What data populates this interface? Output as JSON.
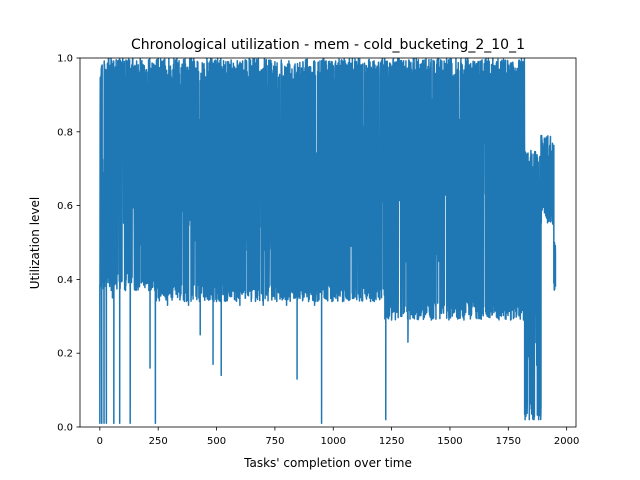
{
  "chart_data": {
    "type": "line",
    "title": "Chronological utilization - mem - cold_bucketing_2_10_1",
    "xlabel": "Tasks' completion over time",
    "ylabel": "Utilization level",
    "xlim": [
      -85,
      2040
    ],
    "ylim": [
      0,
      1.0
    ],
    "xticks": [
      0,
      250,
      500,
      750,
      1000,
      1250,
      1500,
      1750,
      2000
    ],
    "xtick_labels": [
      "0",
      "250",
      "500",
      "750",
      "1000",
      "1250",
      "1500",
      "1750",
      "2000"
    ],
    "yticks": [
      0.0,
      0.2,
      0.4,
      0.6,
      0.8,
      1.0
    ],
    "ytick_labels": [
      "0.0",
      "0.2",
      "0.4",
      "0.6",
      "0.8",
      "1.0"
    ],
    "grid": false,
    "color": "#1f77b4",
    "series": [
      {
        "name": "",
        "segments": [
          {
            "x_start": 0,
            "x_end": 230,
            "low": 0.37,
            "high": 1.0
          },
          {
            "x_start": 230,
            "x_end": 500,
            "low": 0.34,
            "high": 1.0
          },
          {
            "x_start": 500,
            "x_end": 1220,
            "low": 0.34,
            "high": 1.0
          },
          {
            "x_start": 1220,
            "x_end": 1660,
            "low": 0.29,
            "high": 1.0
          },
          {
            "x_start": 1660,
            "x_end": 1820,
            "low": 0.29,
            "high": 1.0
          },
          {
            "x_start": 1820,
            "x_end": 1890,
            "low": 0.02,
            "high": 0.75
          },
          {
            "x_start": 1890,
            "x_end": 1945,
            "low": 0.55,
            "high": 0.79
          },
          {
            "x_start": 1945,
            "x_end": 1952,
            "low": 0.37,
            "high": 0.5
          }
        ],
        "points": [
          [
            0,
            0.01
          ],
          [
            8,
            0.01
          ],
          [
            10,
            0.55
          ],
          [
            14,
            0.59
          ],
          [
            18,
            0.01
          ],
          [
            22,
            0.93
          ],
          [
            28,
            0.01
          ],
          [
            36,
            0.5
          ],
          [
            40,
            0.42
          ],
          [
            48,
            1.0
          ],
          [
            54,
            0.35
          ],
          [
            60,
            0.01
          ],
          [
            70,
            0.97
          ],
          [
            85,
            0.01
          ],
          [
            95,
            0.98
          ],
          [
            110,
            0.37
          ],
          [
            130,
            0.01
          ],
          [
            150,
            0.98
          ],
          [
            170,
            0.38
          ],
          [
            190,
            0.97
          ],
          [
            210,
            0.37
          ],
          [
            215,
            0.16
          ],
          [
            222,
            0.92
          ],
          [
            238,
            0.01
          ],
          [
            250,
            0.97
          ],
          [
            290,
            0.33
          ],
          [
            330,
            1.0
          ],
          [
            380,
            0.33
          ],
          [
            430,
            0.25
          ],
          [
            460,
            0.99
          ],
          [
            485,
            0.17
          ],
          [
            500,
            0.34
          ],
          [
            520,
            0.14
          ],
          [
            540,
            0.99
          ],
          [
            600,
            0.33
          ],
          [
            640,
            1.0
          ],
          [
            700,
            0.33
          ],
          [
            750,
            0.99
          ],
          [
            800,
            0.33
          ],
          [
            845,
            0.13
          ],
          [
            870,
            0.99
          ],
          [
            920,
            0.33
          ],
          [
            950,
            0.01
          ],
          [
            980,
            0.99
          ],
          [
            1040,
            0.34
          ],
          [
            1100,
            0.99
          ],
          [
            1160,
            0.34
          ],
          [
            1210,
            0.99
          ],
          [
            1225,
            0.02
          ],
          [
            1250,
            0.29
          ],
          [
            1280,
            0.99
          ],
          [
            1320,
            0.23
          ],
          [
            1360,
            0.99
          ],
          [
            1420,
            0.29
          ],
          [
            1500,
            0.99
          ],
          [
            1560,
            0.29
          ],
          [
            1620,
            0.99
          ],
          [
            1660,
            0.3
          ],
          [
            1700,
            0.99
          ],
          [
            1760,
            0.29
          ],
          [
            1800,
            0.99
          ],
          [
            1815,
            0.29
          ],
          [
            1822,
            0.02
          ],
          [
            1830,
            0.74
          ],
          [
            1840,
            0.02
          ],
          [
            1850,
            0.74
          ],
          [
            1860,
            0.02
          ],
          [
            1870,
            0.72
          ],
          [
            1880,
            0.02
          ],
          [
            1890,
            0.79
          ],
          [
            1900,
            0.6
          ],
          [
            1910,
            0.78
          ],
          [
            1920,
            0.65
          ],
          [
            1930,
            0.77
          ],
          [
            1940,
            0.55
          ],
          [
            1945,
            0.39
          ],
          [
            1948,
            0.5
          ],
          [
            1952,
            0.38
          ]
        ]
      }
    ]
  }
}
